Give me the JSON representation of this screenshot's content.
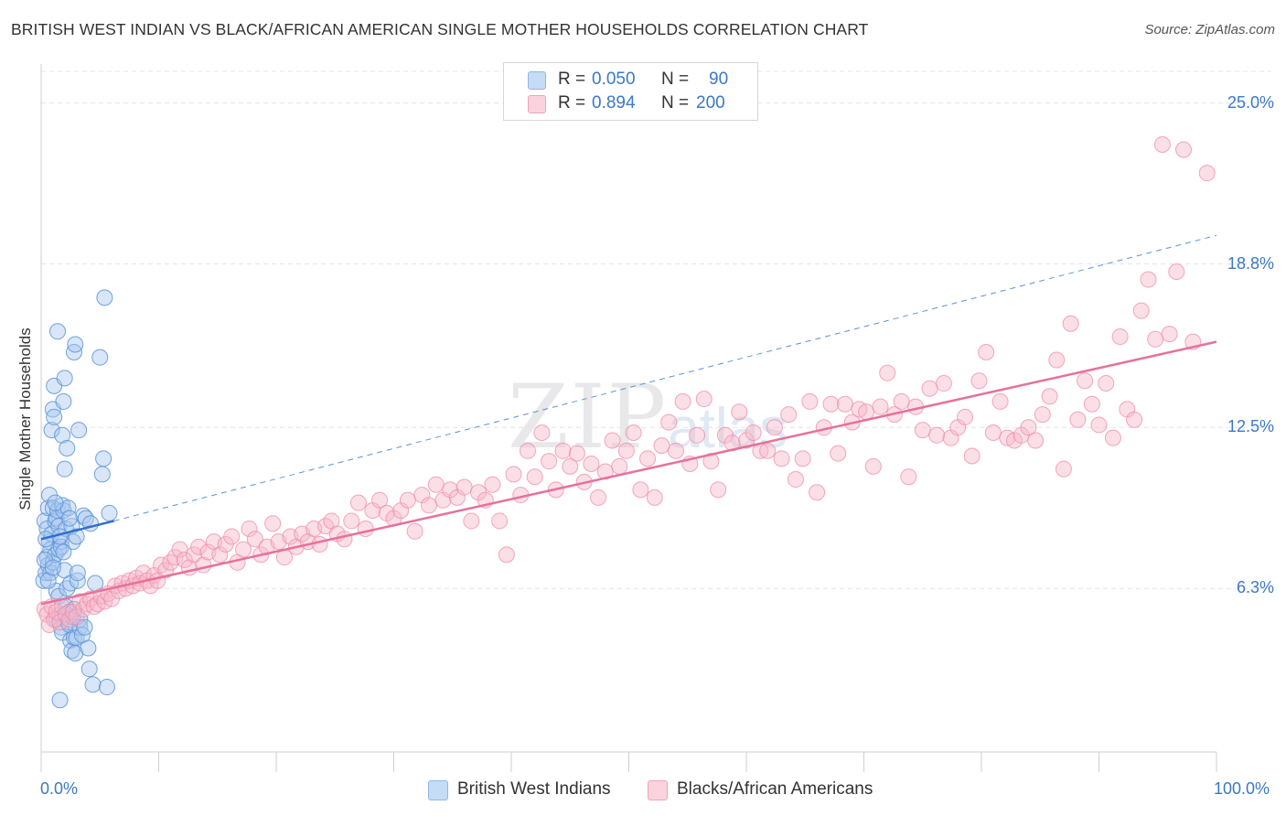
{
  "title": "BRITISH WEST INDIAN VS BLACK/AFRICAN AMERICAN SINGLE MOTHER HOUSEHOLDS CORRELATION CHART",
  "source": "Source: ZipAtlas.com",
  "watermark": {
    "zip": "ZIP",
    "atlas": "atlas"
  },
  "stats": [
    {
      "r_label": "R =",
      "r_value": "0.050",
      "n_label": "N =",
      "n_value": "90",
      "color": "#a9c8f0"
    },
    {
      "r_label": "R =",
      "r_value": "0.894",
      "n_label": "N =",
      "n_value": "200",
      "color": "#f6b8c9"
    }
  ],
  "legend": [
    {
      "label": "British West Indians",
      "color": "#a9c8f0"
    },
    {
      "label": "Blacks/African Americans",
      "color": "#f6b8c9"
    }
  ],
  "colors": {
    "blue_point": "#5b93d8",
    "blue_line": "#2f6fc9",
    "pink_point": "#f08aa8",
    "pink_line": "#e8709a",
    "tick_text": "#3a78c9"
  },
  "chart_data": {
    "type": "scatter",
    "title": "BRITISH WEST INDIAN VS BLACK/AFRICAN AMERICAN SINGLE MOTHER HOUSEHOLDS CORRELATION CHART",
    "xlabel": "",
    "ylabel": "Single Mother Households",
    "xlim": [
      0,
      100
    ],
    "ylim": [
      0,
      26.5
    ],
    "x_tick_labels": [
      "0.0%",
      "100.0%"
    ],
    "y_ticks": [
      6.3,
      12.5,
      18.8,
      25.0
    ],
    "y_tick_labels": [
      "6.3%",
      "12.5%",
      "18.8%",
      "25.0%"
    ],
    "grid": "horizontal dashed",
    "legend_position": "bottom-center",
    "series": [
      {
        "name": "British West Indians",
        "color": "#5b93d8",
        "trend": {
          "x": [
            0,
            6.2
          ],
          "y": [
            8.2,
            8.9
          ],
          "extended_to": [
            100,
            19.9
          ]
        },
        "points": [
          [
            0.2,
            6.6
          ],
          [
            0.3,
            8.9
          ],
          [
            0.4,
            6.9
          ],
          [
            0.5,
            7.5
          ],
          [
            0.5,
            8.6
          ],
          [
            0.6,
            9.4
          ],
          [
            0.6,
            7.2
          ],
          [
            0.7,
            8.1
          ],
          [
            0.7,
            9.9
          ],
          [
            0.8,
            7.8
          ],
          [
            0.8,
            6.9
          ],
          [
            0.9,
            8.4
          ],
          [
            0.9,
            12.4
          ],
          [
            1.0,
            7.3
          ],
          [
            1.0,
            9.4
          ],
          [
            1.0,
            13.2
          ],
          [
            1.1,
            12.9
          ],
          [
            1.1,
            14.1
          ],
          [
            1.2,
            7.6
          ],
          [
            1.2,
            8.9
          ],
          [
            1.3,
            9.0
          ],
          [
            1.3,
            6.2
          ],
          [
            1.3,
            5.1
          ],
          [
            1.4,
            16.2
          ],
          [
            1.4,
            9.3
          ],
          [
            1.5,
            8.7
          ],
          [
            1.5,
            7.8
          ],
          [
            1.5,
            6.0
          ],
          [
            1.6,
            2.0
          ],
          [
            1.6,
            5.3
          ],
          [
            1.7,
            8.1
          ],
          [
            1.7,
            7.9
          ],
          [
            1.7,
            4.8
          ],
          [
            1.8,
            9.5
          ],
          [
            1.8,
            12.2
          ],
          [
            1.8,
            4.6
          ],
          [
            1.9,
            13.5
          ],
          [
            1.9,
            9.3
          ],
          [
            2.0,
            14.4
          ],
          [
            2.0,
            10.9
          ],
          [
            2.0,
            7.0
          ],
          [
            2.1,
            8.6
          ],
          [
            2.1,
            5.6
          ],
          [
            2.2,
            11.7
          ],
          [
            2.2,
            6.3
          ],
          [
            2.3,
            9.4
          ],
          [
            2.3,
            5.0
          ],
          [
            2.4,
            4.9
          ],
          [
            2.4,
            5.4
          ],
          [
            2.5,
            6.5
          ],
          [
            2.5,
            4.3
          ],
          [
            2.6,
            3.9
          ],
          [
            2.6,
            8.7
          ],
          [
            2.7,
            5.2
          ],
          [
            2.7,
            8.1
          ],
          [
            2.8,
            4.4
          ],
          [
            2.8,
            15.4
          ],
          [
            2.9,
            15.7
          ],
          [
            2.9,
            3.8
          ],
          [
            3.0,
            8.3
          ],
          [
            3.0,
            4.4
          ],
          [
            3.1,
            6.6
          ],
          [
            3.1,
            6.9
          ],
          [
            3.2,
            12.4
          ],
          [
            3.3,
            5.1
          ],
          [
            3.3,
            4.8
          ],
          [
            3.5,
            4.5
          ],
          [
            3.6,
            9.1
          ],
          [
            3.7,
            4.8
          ],
          [
            3.8,
            9.0
          ],
          [
            4.0,
            4.0
          ],
          [
            4.1,
            3.2
          ],
          [
            4.2,
            8.8
          ],
          [
            4.4,
            2.6
          ],
          [
            4.6,
            6.5
          ],
          [
            5.0,
            15.2
          ],
          [
            5.2,
            10.7
          ],
          [
            5.3,
            11.3
          ],
          [
            5.4,
            17.5
          ],
          [
            5.6,
            2.5
          ],
          [
            5.8,
            9.2
          ],
          [
            0.3,
            7.4
          ],
          [
            0.4,
            8.2
          ],
          [
            0.6,
            6.6
          ],
          [
            1.0,
            7.1
          ],
          [
            1.2,
            9.6
          ],
          [
            1.6,
            8.3
          ],
          [
            2.4,
            9.0
          ],
          [
            2.8,
            5.5
          ],
          [
            1.9,
            7.7
          ]
        ]
      },
      {
        "name": "Blacks/African Americans",
        "color": "#f08aa8",
        "trend": {
          "x": [
            0,
            100
          ],
          "y": [
            5.7,
            15.8
          ]
        },
        "points": [
          [
            0.3,
            5.5
          ],
          [
            0.5,
            5.3
          ],
          [
            0.7,
            4.9
          ],
          [
            0.9,
            5.6
          ],
          [
            1.1,
            5.1
          ],
          [
            1.3,
            5.4
          ],
          [
            1.6,
            5.0
          ],
          [
            1.8,
            5.6
          ],
          [
            2.1,
            5.3
          ],
          [
            2.4,
            5.1
          ],
          [
            2.7,
            5.4
          ],
          [
            3.0,
            5.2
          ],
          [
            3.3,
            5.8
          ],
          [
            3.6,
            5.5
          ],
          [
            3.9,
            5.7
          ],
          [
            4.2,
            5.9
          ],
          [
            4.5,
            5.6
          ],
          [
            4.8,
            5.7
          ],
          [
            5.1,
            6.0
          ],
          [
            5.4,
            5.8
          ],
          [
            5.7,
            6.1
          ],
          [
            6.0,
            5.9
          ],
          [
            6.3,
            6.4
          ],
          [
            6.6,
            6.2
          ],
          [
            6.9,
            6.5
          ],
          [
            7.2,
            6.3
          ],
          [
            7.5,
            6.6
          ],
          [
            7.8,
            6.4
          ],
          [
            8.1,
            6.7
          ],
          [
            8.4,
            6.5
          ],
          [
            8.7,
            6.9
          ],
          [
            9.0,
            6.6
          ],
          [
            9.3,
            6.4
          ],
          [
            9.6,
            6.8
          ],
          [
            9.9,
            6.6
          ],
          [
            10.2,
            7.2
          ],
          [
            10.6,
            7.0
          ],
          [
            11.0,
            7.3
          ],
          [
            11.4,
            7.5
          ],
          [
            11.8,
            7.8
          ],
          [
            12.2,
            7.4
          ],
          [
            12.6,
            7.1
          ],
          [
            13.0,
            7.6
          ],
          [
            13.4,
            7.9
          ],
          [
            13.8,
            7.2
          ],
          [
            14.2,
            7.7
          ],
          [
            14.7,
            8.1
          ],
          [
            15.2,
            7.6
          ],
          [
            15.7,
            8.0
          ],
          [
            16.2,
            8.3
          ],
          [
            16.7,
            7.3
          ],
          [
            17.2,
            7.8
          ],
          [
            17.7,
            8.6
          ],
          [
            18.2,
            8.2
          ],
          [
            18.7,
            7.6
          ],
          [
            19.2,
            7.9
          ],
          [
            19.7,
            8.8
          ],
          [
            20.2,
            8.1
          ],
          [
            20.7,
            7.5
          ],
          [
            21.2,
            8.3
          ],
          [
            21.7,
            7.9
          ],
          [
            22.2,
            8.4
          ],
          [
            22.7,
            8.1
          ],
          [
            23.2,
            8.6
          ],
          [
            23.7,
            8.0
          ],
          [
            24.2,
            8.7
          ],
          [
            24.7,
            8.9
          ],
          [
            25.2,
            8.4
          ],
          [
            25.8,
            8.2
          ],
          [
            26.4,
            8.9
          ],
          [
            27.0,
            9.6
          ],
          [
            27.6,
            8.6
          ],
          [
            28.2,
            9.3
          ],
          [
            28.8,
            9.7
          ],
          [
            29.4,
            9.2
          ],
          [
            30.0,
            9.0
          ],
          [
            30.6,
            9.3
          ],
          [
            31.2,
            9.7
          ],
          [
            31.8,
            8.5
          ],
          [
            32.4,
            9.9
          ],
          [
            33.0,
            9.5
          ],
          [
            33.6,
            10.3
          ],
          [
            34.2,
            9.7
          ],
          [
            34.8,
            10.1
          ],
          [
            35.4,
            9.8
          ],
          [
            36.0,
            10.2
          ],
          [
            36.6,
            8.9
          ],
          [
            37.2,
            10.0
          ],
          [
            37.8,
            9.7
          ],
          [
            38.4,
            10.3
          ],
          [
            39.0,
            8.9
          ],
          [
            39.6,
            7.6
          ],
          [
            40.2,
            10.7
          ],
          [
            40.8,
            9.9
          ],
          [
            41.4,
            11.6
          ],
          [
            42.0,
            10.6
          ],
          [
            42.6,
            12.3
          ],
          [
            43.2,
            11.2
          ],
          [
            43.8,
            10.1
          ],
          [
            44.4,
            11.6
          ],
          [
            45.0,
            11.0
          ],
          [
            45.6,
            11.5
          ],
          [
            46.2,
            10.4
          ],
          [
            46.8,
            11.1
          ],
          [
            47.4,
            9.8
          ],
          [
            48.0,
            10.8
          ],
          [
            48.6,
            12.0
          ],
          [
            49.2,
            11.0
          ],
          [
            49.8,
            11.6
          ],
          [
            50.4,
            12.3
          ],
          [
            51.0,
            10.1
          ],
          [
            51.6,
            11.3
          ],
          [
            52.2,
            9.8
          ],
          [
            52.8,
            11.8
          ],
          [
            53.4,
            12.7
          ],
          [
            54.0,
            11.6
          ],
          [
            54.6,
            13.5
          ],
          [
            55.2,
            11.1
          ],
          [
            55.8,
            12.2
          ],
          [
            56.4,
            13.6
          ],
          [
            57.0,
            11.2
          ],
          [
            57.6,
            10.1
          ],
          [
            58.2,
            12.2
          ],
          [
            58.8,
            11.9
          ],
          [
            59.4,
            13.1
          ],
          [
            60.0,
            12.0
          ],
          [
            60.6,
            12.3
          ],
          [
            61.2,
            11.6
          ],
          [
            61.8,
            11.6
          ],
          [
            62.4,
            12.5
          ],
          [
            63.0,
            11.3
          ],
          [
            63.6,
            13.0
          ],
          [
            64.2,
            10.5
          ],
          [
            64.8,
            11.3
          ],
          [
            65.4,
            13.5
          ],
          [
            66.0,
            10.0
          ],
          [
            66.6,
            12.5
          ],
          [
            67.2,
            13.4
          ],
          [
            67.8,
            11.5
          ],
          [
            68.4,
            13.4
          ],
          [
            69.0,
            12.7
          ],
          [
            69.6,
            13.2
          ],
          [
            70.2,
            13.1
          ],
          [
            70.8,
            11.0
          ],
          [
            71.4,
            13.3
          ],
          [
            72.0,
            14.6
          ],
          [
            72.6,
            13.0
          ],
          [
            73.2,
            13.5
          ],
          [
            73.8,
            10.6
          ],
          [
            74.4,
            13.3
          ],
          [
            75.0,
            12.4
          ],
          [
            75.6,
            14.0
          ],
          [
            76.2,
            12.2
          ],
          [
            76.8,
            14.2
          ],
          [
            77.4,
            12.1
          ],
          [
            78.0,
            12.5
          ],
          [
            78.6,
            12.9
          ],
          [
            79.2,
            11.4
          ],
          [
            79.8,
            14.3
          ],
          [
            80.4,
            15.4
          ],
          [
            81.0,
            12.3
          ],
          [
            81.6,
            13.5
          ],
          [
            82.2,
            12.1
          ],
          [
            82.8,
            12.0
          ],
          [
            83.4,
            12.2
          ],
          [
            84.0,
            12.5
          ],
          [
            84.6,
            12.0
          ],
          [
            85.2,
            13.0
          ],
          [
            85.8,
            13.7
          ],
          [
            86.4,
            15.1
          ],
          [
            87.0,
            10.9
          ],
          [
            87.6,
            16.5
          ],
          [
            88.2,
            12.8
          ],
          [
            88.8,
            14.3
          ],
          [
            89.4,
            13.4
          ],
          [
            90.0,
            12.6
          ],
          [
            90.6,
            14.2
          ],
          [
            91.2,
            12.1
          ],
          [
            91.8,
            16.0
          ],
          [
            92.4,
            13.2
          ],
          [
            93.0,
            12.8
          ],
          [
            93.6,
            17.0
          ],
          [
            94.2,
            18.2
          ],
          [
            94.8,
            15.9
          ],
          [
            95.4,
            23.4
          ],
          [
            96.0,
            16.1
          ],
          [
            96.6,
            18.5
          ],
          [
            97.2,
            23.2
          ],
          [
            98.0,
            15.8
          ],
          [
            99.2,
            22.3
          ]
        ]
      }
    ]
  }
}
